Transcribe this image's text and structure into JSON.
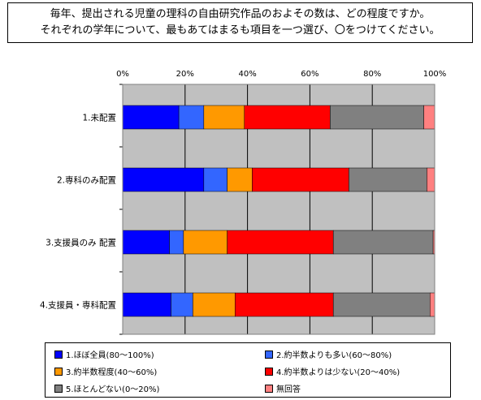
{
  "question": {
    "line1": "毎年、提出される児童の理科の自由研究作品のおよその数は、どの程度ですか。",
    "line2": "それぞれの学年について、最もあてはまるも項目を一つ選び、〇をつけてください。"
  },
  "chart_data": {
    "type": "bar",
    "orientation": "horizontal",
    "stacked": true,
    "percent": true,
    "categories": [
      "1.未配置",
      "2.専科のみ配置",
      "3.支援員のみ 配置",
      "4.支援員・専科配置"
    ],
    "xlim": [
      0,
      100
    ],
    "xticks": [
      "0%",
      "20%",
      "40%",
      "60%",
      "80%",
      "100%"
    ],
    "grid": true,
    "legend_position": "bottom",
    "series": [
      {
        "name": "1.ほぼ全員(80〜100%)",
        "color": "#0000ff",
        "values": [
          18,
          26,
          15,
          15.5
        ]
      },
      {
        "name": "2.約半数よりも多い(60〜80%)",
        "color": "#3366ff",
        "values": [
          8,
          7.5,
          4.5,
          7
        ]
      },
      {
        "name": "3.約半数程度(40〜60%)",
        "color": "#ff9900",
        "values": [
          13,
          8,
          14,
          13.5
        ]
      },
      {
        "name": "4.約半数よりは少ない(20〜40%)",
        "color": "#ff0000",
        "values": [
          27.5,
          31,
          34,
          31.5
        ]
      },
      {
        "name": "5.ほとんどない(0〜20%)",
        "color": "#808080",
        "values": [
          30,
          25,
          32,
          31
        ]
      },
      {
        "name": "無回答",
        "color": "#ff8080",
        "values": [
          3.5,
          2.5,
          0.5,
          1.5
        ]
      }
    ]
  }
}
